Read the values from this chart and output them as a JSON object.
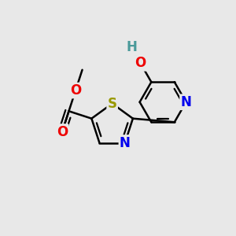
{
  "background_color": "#e8e8e8",
  "bond_color": "#000000",
  "bond_width": 1.8,
  "atoms": {
    "S": {
      "color": "#999900",
      "fontsize": 12
    },
    "N_thiazole": {
      "color": "#0000ee",
      "fontsize": 12
    },
    "N_pyridine": {
      "color": "#0000ee",
      "fontsize": 12
    },
    "O": {
      "color": "#ee0000",
      "fontsize": 12
    },
    "H": {
      "color": "#4a9a9a",
      "fontsize": 12
    }
  },
  "xlim": [
    -1.6,
    1.6
  ],
  "ylim": [
    -1.6,
    1.6
  ]
}
